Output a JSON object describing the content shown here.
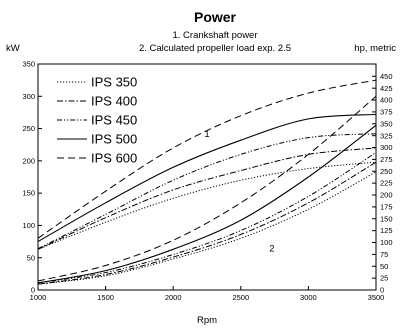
{
  "chart_data": {
    "type": "line",
    "title": "Power",
    "subtitle_lines": [
      "1. Crankshaft power",
      "2. Calculated propeller load exp. 2.5"
    ],
    "left_unit": "kW",
    "right_unit": "hp, metric",
    "xlabel": "Rpm",
    "xlim": [
      1000,
      3500
    ],
    "xticks": [
      1000,
      1500,
      2000,
      2500,
      3000,
      3500
    ],
    "ylim": [
      0,
      350
    ],
    "yticks": [
      0,
      50,
      100,
      150,
      200,
      250,
      300,
      350
    ],
    "y2lim": [
      0,
      475.9
    ],
    "y2ticks": [
      0,
      25,
      50,
      75,
      100,
      125,
      150,
      175,
      200,
      225,
      250,
      275,
      300,
      325,
      350,
      375,
      400,
      425,
      450
    ],
    "grid": false,
    "legend_position": "top-left",
    "annotations": [
      {
        "text": "1",
        "x": 2250,
        "y": 237
      },
      {
        "text": "2",
        "x": 2730,
        "y": 60
      }
    ],
    "series": [
      {
        "name": "IPS 350",
        "style": "dotted",
        "group": 1,
        "x": [
          1000,
          1500,
          2000,
          2500,
          3000,
          3500
        ],
        "y": [
          63,
          105,
          142,
          170,
          188,
          198
        ]
      },
      {
        "name": "IPS 350",
        "style": "dotted",
        "group": 2,
        "x": [
          1000,
          1500,
          2000,
          2500,
          3000,
          3500
        ],
        "y": [
          9,
          22,
          48,
          80,
          125,
          183
        ]
      },
      {
        "name": "IPS 400",
        "style": "dash-dot",
        "group": 1,
        "x": [
          1000,
          1500,
          2000,
          2500,
          3000,
          3500
        ],
        "y": [
          63,
          112,
          155,
          185,
          210,
          220
        ]
      },
      {
        "name": "IPS 400",
        "style": "dash-dot",
        "group": 2,
        "x": [
          1000,
          1500,
          2000,
          2500,
          3000,
          3500
        ],
        "y": [
          9,
          24,
          51,
          86,
          135,
          198
        ]
      },
      {
        "name": "IPS 450",
        "style": "dash-dot-dot",
        "group": 1,
        "x": [
          1000,
          1500,
          2000,
          2500,
          3000,
          3500
        ],
        "y": [
          64,
          117,
          170,
          210,
          236,
          242
        ]
      },
      {
        "name": "IPS 450",
        "style": "dash-dot-dot",
        "group": 2,
        "x": [
          1000,
          1500,
          2000,
          2500,
          3000,
          3500
        ],
        "y": [
          11,
          27,
          55,
          92,
          145,
          213
        ]
      },
      {
        "name": "IPS 500",
        "style": "solid",
        "group": 1,
        "x": [
          1000,
          1500,
          2000,
          2500,
          3000,
          3500
        ],
        "y": [
          75,
          135,
          190,
          232,
          265,
          272
        ]
      },
      {
        "name": "IPS 500",
        "style": "solid",
        "group": 2,
        "x": [
          1000,
          1500,
          2000,
          2500,
          3000,
          3500
        ],
        "y": [
          11,
          30,
          63,
          108,
          175,
          255
        ]
      },
      {
        "name": "IPS 600",
        "style": "dashed",
        "group": 1,
        "x": [
          1000,
          1500,
          2000,
          2500,
          3000,
          3500
        ],
        "y": [
          80,
          153,
          220,
          270,
          305,
          325
        ]
      },
      {
        "name": "IPS 600",
        "style": "dashed",
        "group": 2,
        "x": [
          1000,
          1500,
          2000,
          2500,
          3000,
          3500
        ],
        "y": [
          14,
          38,
          77,
          135,
          210,
          300
        ]
      }
    ]
  }
}
